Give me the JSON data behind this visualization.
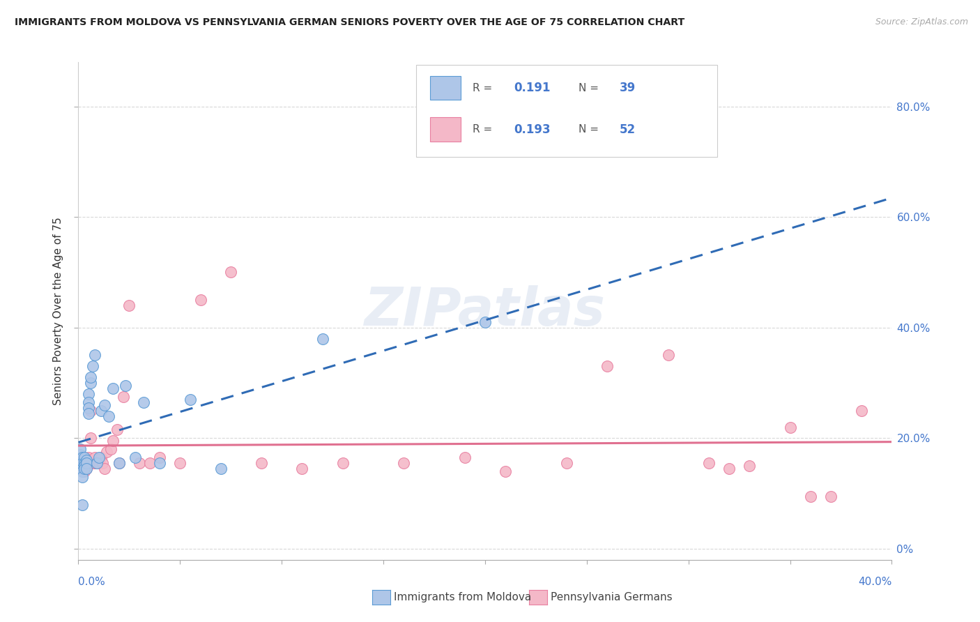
{
  "title": "IMMIGRANTS FROM MOLDOVA VS PENNSYLVANIA GERMAN SENIORS POVERTY OVER THE AGE OF 75 CORRELATION CHART",
  "source": "Source: ZipAtlas.com",
  "ylabel": "Seniors Poverty Over the Age of 75",
  "xlim": [
    0.0,
    0.4
  ],
  "ylim": [
    -0.02,
    0.88
  ],
  "yticks": [
    0.0,
    0.2,
    0.4,
    0.6,
    0.8
  ],
  "ytick_labels": [
    "0%",
    "20.0%",
    "40.0%",
    "60.0%",
    "80.0%"
  ],
  "moldova_color": "#aec6e8",
  "moldova_edge": "#5b9bd5",
  "penn_color": "#f4b8c8",
  "penn_edge": "#e87fa0",
  "trend_moldova_color": "#2f6bb5",
  "trend_penn_color": "#e07090",
  "watermark": "ZIPatlas",
  "background_color": "#ffffff",
  "grid_color": "#d8d8d8",
  "moldova_x": [
    0.001,
    0.001,
    0.001,
    0.002,
    0.002,
    0.002,
    0.002,
    0.002,
    0.002,
    0.003,
    0.003,
    0.003,
    0.003,
    0.004,
    0.004,
    0.004,
    0.005,
    0.005,
    0.005,
    0.005,
    0.006,
    0.006,
    0.007,
    0.008,
    0.009,
    0.01,
    0.011,
    0.013,
    0.015,
    0.017,
    0.02,
    0.023,
    0.028,
    0.032,
    0.04,
    0.055,
    0.07,
    0.12,
    0.2
  ],
  "moldova_y": [
    0.17,
    0.18,
    0.155,
    0.165,
    0.155,
    0.145,
    0.14,
    0.13,
    0.08,
    0.165,
    0.155,
    0.15,
    0.145,
    0.16,
    0.155,
    0.145,
    0.28,
    0.265,
    0.255,
    0.245,
    0.3,
    0.31,
    0.33,
    0.35,
    0.155,
    0.165,
    0.25,
    0.26,
    0.24,
    0.29,
    0.155,
    0.295,
    0.165,
    0.265,
    0.155,
    0.27,
    0.145,
    0.38,
    0.41
  ],
  "penn_x": [
    0.001,
    0.001,
    0.002,
    0.002,
    0.003,
    0.003,
    0.003,
    0.004,
    0.004,
    0.005,
    0.005,
    0.005,
    0.006,
    0.006,
    0.007,
    0.007,
    0.008,
    0.008,
    0.009,
    0.01,
    0.011,
    0.012,
    0.013,
    0.014,
    0.016,
    0.017,
    0.019,
    0.02,
    0.022,
    0.025,
    0.03,
    0.035,
    0.04,
    0.05,
    0.06,
    0.075,
    0.09,
    0.11,
    0.13,
    0.16,
    0.19,
    0.21,
    0.24,
    0.26,
    0.29,
    0.31,
    0.32,
    0.33,
    0.35,
    0.36,
    0.37,
    0.385
  ],
  "penn_y": [
    0.155,
    0.145,
    0.16,
    0.15,
    0.165,
    0.155,
    0.14,
    0.155,
    0.145,
    0.155,
    0.165,
    0.155,
    0.2,
    0.25,
    0.155,
    0.155,
    0.155,
    0.165,
    0.155,
    0.155,
    0.165,
    0.155,
    0.145,
    0.175,
    0.18,
    0.195,
    0.215,
    0.155,
    0.275,
    0.44,
    0.155,
    0.155,
    0.165,
    0.155,
    0.45,
    0.5,
    0.155,
    0.145,
    0.155,
    0.155,
    0.165,
    0.14,
    0.155,
    0.33,
    0.35,
    0.155,
    0.145,
    0.15,
    0.22,
    0.095,
    0.095,
    0.25
  ]
}
